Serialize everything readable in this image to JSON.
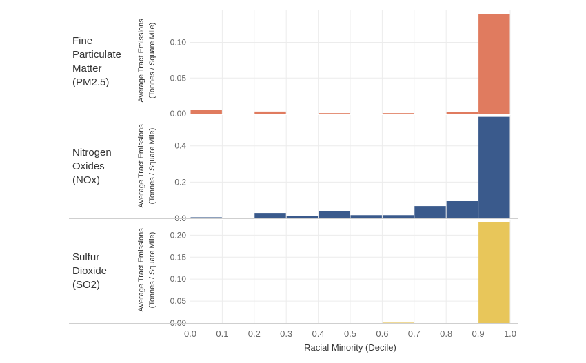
{
  "chart_data": {
    "type": "bar",
    "xlabel": "Racial Minority (Decile)",
    "x_ticks": [
      "0.0",
      "0.1",
      "0.2",
      "0.3",
      "0.4",
      "0.5",
      "0.6",
      "0.7",
      "0.8",
      "0.9",
      "1.0"
    ],
    "xlim": [
      0.0,
      1.0
    ],
    "bin_width": 0.1,
    "grid": true,
    "panels": [
      {
        "row_label": "Fine\nParticulate\nMatter\n(PM2.5)",
        "ylabel": "Average Tract Emissions\n(Tonnes / Square Mile)",
        "y_ticks": [
          "0.00",
          "0.05",
          "0.10"
        ],
        "ylim": [
          0,
          0.145
        ],
        "color": "#E07B5F",
        "bins": [
          0.0,
          0.1,
          0.2,
          0.3,
          0.4,
          0.5,
          0.6,
          0.7,
          0.8,
          0.9
        ],
        "values": [
          0.005,
          0.0,
          0.003,
          0.0,
          0.0008,
          0.0,
          0.0008,
          0.0,
          0.002,
          0.14
        ]
      },
      {
        "row_label": "Nitrogen\nOxides\n(NOx)",
        "ylabel": "Average Tract Emissions\n(Tonnes / Square Mile)",
        "y_ticks": [
          "0.0",
          "0.2",
          "0.4"
        ],
        "ylim": [
          0,
          0.57
        ],
        "color": "#3A5A8C",
        "bins": [
          0.0,
          0.1,
          0.2,
          0.3,
          0.4,
          0.5,
          0.6,
          0.7,
          0.8,
          0.9
        ],
        "values": [
          0.006,
          0.003,
          0.03,
          0.012,
          0.04,
          0.018,
          0.018,
          0.068,
          0.095,
          0.56
        ]
      },
      {
        "row_label": "Sulfur\nDioxide\n(SO2)",
        "ylabel": "Average Tract Emissions\n(Tonnes / Square Mile)",
        "y_ticks": [
          "0.00",
          "0.05",
          "0.10",
          "0.15",
          "0.20"
        ],
        "ylim": [
          0,
          0.235
        ],
        "color": "#E8C65A",
        "bins": [
          0.0,
          0.1,
          0.2,
          0.3,
          0.4,
          0.5,
          0.6,
          0.7,
          0.8,
          0.9
        ],
        "values": [
          0.0,
          0.0,
          0.0,
          0.0,
          0.0,
          0.0,
          0.001,
          0.0,
          0.0,
          0.229
        ]
      }
    ]
  }
}
